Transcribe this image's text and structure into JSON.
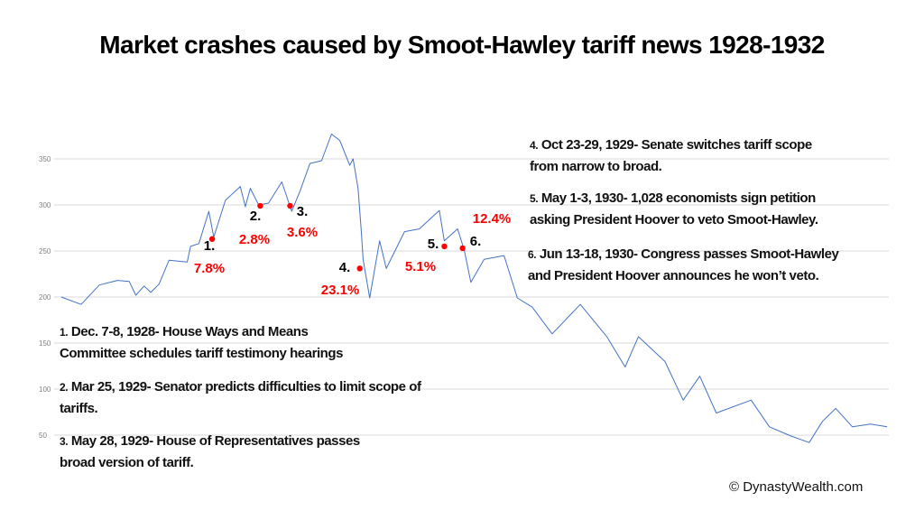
{
  "chart_data": {
    "type": "line",
    "title": "Market crashes caused by Smoot-Hawley tariff news 1928-1932",
    "xlabel": "",
    "ylabel": "",
    "ylim": [
      40,
      380
    ],
    "yticks": [
      50,
      100,
      150,
      200,
      250,
      300,
      350
    ],
    "grid": true,
    "line_color": "#4472C4",
    "marker_color": "#FF0000",
    "series": [
      {
        "points": [
          [
            1928.01,
            200
          ],
          [
            1928.13,
            192
          ],
          [
            1928.24,
            213
          ],
          [
            1928.35,
            218
          ],
          [
            1928.42,
            217
          ],
          [
            1928.46,
            202
          ],
          [
            1928.51,
            212
          ],
          [
            1928.55,
            205
          ],
          [
            1928.6,
            214
          ],
          [
            1928.66,
            240
          ],
          [
            1928.77,
            238
          ],
          [
            1928.79,
            255
          ],
          [
            1928.84,
            258
          ],
          [
            1928.9,
            293
          ],
          [
            1928.93,
            265
          ],
          [
            1929.0,
            305
          ],
          [
            1929.09,
            320
          ],
          [
            1929.12,
            298
          ],
          [
            1929.15,
            318
          ],
          [
            1929.2,
            300
          ],
          [
            1929.26,
            302
          ],
          [
            1929.34,
            325
          ],
          [
            1929.4,
            293
          ],
          [
            1929.45,
            315
          ],
          [
            1929.51,
            345
          ],
          [
            1929.58,
            348
          ],
          [
            1929.64,
            377
          ],
          [
            1929.69,
            370
          ],
          [
            1929.75,
            343
          ],
          [
            1929.77,
            350
          ],
          [
            1929.8,
            318
          ],
          [
            1929.82,
            270
          ],
          [
            1929.83,
            241
          ],
          [
            1929.87,
            199
          ],
          [
            1929.93,
            261
          ],
          [
            1929.97,
            231
          ],
          [
            1930.08,
            271
          ],
          [
            1930.17,
            274
          ],
          [
            1930.29,
            294
          ],
          [
            1930.32,
            261
          ],
          [
            1930.4,
            274
          ],
          [
            1930.44,
            251
          ],
          [
            1930.48,
            216
          ],
          [
            1930.56,
            241
          ],
          [
            1930.68,
            245
          ],
          [
            1930.76,
            199
          ],
          [
            1930.85,
            189
          ],
          [
            1930.97,
            160
          ],
          [
            1931.14,
            192
          ],
          [
            1931.3,
            157
          ],
          [
            1931.41,
            124
          ],
          [
            1931.49,
            157
          ],
          [
            1931.65,
            130
          ],
          [
            1931.76,
            88
          ],
          [
            1931.86,
            114
          ],
          [
            1931.96,
            74
          ],
          [
            1932.17,
            88
          ],
          [
            1932.28,
            59
          ],
          [
            1932.41,
            49
          ],
          [
            1932.52,
            42
          ],
          [
            1932.6,
            65
          ],
          [
            1932.68,
            79
          ],
          [
            1932.78,
            59
          ],
          [
            1932.89,
            62
          ],
          [
            1932.99,
            59
          ]
        ]
      }
    ],
    "markers": [
      {
        "label": "1.",
        "drop": "7.8%",
        "x": 1928.92,
        "y": 263
      },
      {
        "label": "2.",
        "drop": "2.8%",
        "x": 1929.21,
        "y": 299
      },
      {
        "label": "3.",
        "drop": "3.6%",
        "x": 1929.39,
        "y": 299
      },
      {
        "label": "4.",
        "drop": "23.1%",
        "x": 1929.81,
        "y": 231
      },
      {
        "label": "5.",
        "drop": "5.1%",
        "x": 1930.32,
        "y": 255
      },
      {
        "label": "6.",
        "drop": "12.4%",
        "x": 1930.43,
        "y": 253
      }
    ]
  },
  "annotations": {
    "a1": {
      "num": "1.",
      "line1": " Dec. 7-8, 1928- House Ways and Means",
      "line2": "Committee schedules tariff testimony hearings"
    },
    "a2": {
      "num": "2.",
      "line1": " Mar 25, 1929- Senator predicts difficulties to limit scope of",
      "line2": "tariffs."
    },
    "a3": {
      "num": "3.",
      "line1": " May 28, 1929- House of Representatives passes",
      "line2": "broad version of tariff."
    },
    "a4": {
      "num": "4.",
      "line1": " Oct 23-29, 1929- Senate switches tariff scope",
      "line2": "from narrow to broad."
    },
    "a5": {
      "num": "5.",
      "line1": " May 1-3, 1930- 1,028 economists sign petition",
      "line2": "asking President Hoover to veto Smoot-Hawley."
    },
    "a6": {
      "num": "6.",
      "line1": " Jun 13-18, 1930- Congress passes Smoot-Hawley",
      "line2": "and President Hoover announces he won’t  veto."
    }
  },
  "copyright": "© DynastyWealth.com"
}
